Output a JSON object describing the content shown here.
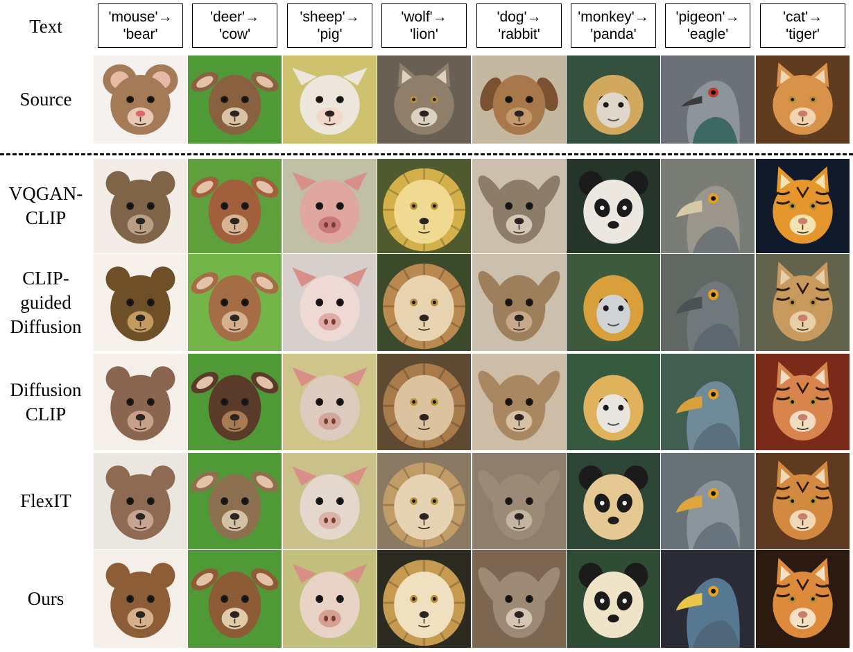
{
  "figure": {
    "header_label": "Text",
    "prompts": [
      {
        "source": "'mouse'→",
        "target": "'bear'"
      },
      {
        "source": "'deer'→",
        "target": "'cow'"
      },
      {
        "source": "'sheep'→",
        "target": "'pig'"
      },
      {
        "source": "'wolf'→",
        "target": "'lion'"
      },
      {
        "source": "'dog'→",
        "target": "'rabbit'"
      },
      {
        "source": "'monkey'→",
        "target": "'panda'"
      },
      {
        "source": "'pigeon'→",
        "target": "'eagle'"
      },
      {
        "source": "'cat'→",
        "target": "'tiger'"
      }
    ],
    "rows": [
      {
        "label": "Source",
        "kind": "source"
      },
      {
        "label": "VQGAN-\nCLIP",
        "kind": "method"
      },
      {
        "label": "CLIP-\nguided\nDiffusion",
        "kind": "method"
      },
      {
        "label": "Diffusion\nCLIP",
        "kind": "method"
      },
      {
        "label": "FlexIT",
        "kind": "method"
      },
      {
        "label": "Ours",
        "kind": "method"
      }
    ],
    "animal_images": [
      [
        {
          "icon": "mouse-face-icon",
          "bg": "#f4f1ee",
          "fur": "#a47a57",
          "muzzle": "#e8c9b3"
        },
        {
          "icon": "deer-face-icon",
          "bg": "#4f9a37",
          "fur": "#8a6140",
          "muzzle": "#d9c3a4"
        },
        {
          "icon": "sheep-face-icon",
          "bg": "#cfc26f",
          "fur": "#ece6dc",
          "muzzle": "#f2d8cc"
        },
        {
          "icon": "wolf-face-icon",
          "bg": "#6a5f55",
          "fur": "#8f7f6a",
          "muzzle": "#dcd2c2"
        },
        {
          "icon": "dog-face-icon",
          "bg": "#c5b8a2",
          "fur": "#a8784b",
          "muzzle": "#6a4c35"
        },
        {
          "icon": "monkey-face-icon",
          "bg": "#34513f",
          "fur": "#d1a85e",
          "muzzle": "#dfd7c9"
        },
        {
          "icon": "pigeon-face-icon",
          "bg": "#6b7177",
          "fur": "#8d949a",
          "muzzle": "#3c6a60"
        },
        {
          "icon": "cat-face-icon",
          "bg": "#5f3b1f",
          "fur": "#d8924a",
          "muzzle": "#f1d5b2"
        }
      ],
      [
        {
          "icon": "bear-face-icon",
          "bg": "#f3ece6",
          "fur": "#7f6448",
          "muzzle": "#b7a083"
        },
        {
          "icon": "cow-face-icon",
          "bg": "#5f9f3c",
          "fur": "#a15f3c",
          "muzzle": "#d7b494"
        },
        {
          "icon": "pig-face-icon",
          "bg": "#bfc0a6",
          "fur": "#e0a7a0",
          "muzzle": "#c97a76"
        },
        {
          "icon": "lion-face-icon",
          "bg": "#4f5b2e",
          "fur": "#d4b04a",
          "muzzle": "#f0da92"
        },
        {
          "icon": "rabbit-face-icon",
          "bg": "#cdbfae",
          "fur": "#8d7d68",
          "muzzle": "#d3c6b4"
        },
        {
          "icon": "panda-face-icon",
          "bg": "#253529",
          "fur": "#ece8e0",
          "muzzle": "#1b1b1b"
        },
        {
          "icon": "eagle-face-icon",
          "bg": "#7a7d76",
          "fur": "#9b968b",
          "muzzle": "#d6caa6"
        },
        {
          "icon": "tiger-face-icon",
          "bg": "#101a2b",
          "fur": "#e5972d",
          "muzzle": "#f3e3b0"
        }
      ],
      [
        {
          "icon": "bear-face-icon",
          "bg": "#f6f1ea",
          "fur": "#6e4f27",
          "muzzle": "#c39b5f"
        },
        {
          "icon": "cow-face-icon",
          "bg": "#73b548",
          "fur": "#a56d45",
          "muzzle": "#d5b08e"
        },
        {
          "icon": "pig-face-icon",
          "bg": "#d7cfcb",
          "fur": "#efd9d4",
          "muzzle": "#e0aba4"
        },
        {
          "icon": "lion-face-icon",
          "bg": "#3a4a2a",
          "fur": "#b9894f",
          "muzzle": "#e8d4b0"
        },
        {
          "icon": "rabbit-face-icon",
          "bg": "#cbbfae",
          "fur": "#9e7f5c",
          "muzzle": "#c7a88a"
        },
        {
          "icon": "monkey-face-icon",
          "bg": "#3d5b3c",
          "fur": "#d89f3b",
          "muzzle": "#cfd3d6"
        },
        {
          "icon": "eagle-face-icon",
          "bg": "#606864",
          "fur": "#71787c",
          "muzzle": "#4b5154"
        },
        {
          "icon": "tiger-face-icon",
          "bg": "#62634d",
          "fur": "#c99a5e",
          "muzzle": "#e7cfa7"
        }
      ],
      [
        {
          "icon": "bear-face-icon",
          "bg": "#f5efe9",
          "fur": "#8a6650",
          "muzzle": "#c89f88"
        },
        {
          "icon": "cow-face-icon",
          "bg": "#4f9a37",
          "fur": "#5a3b2a",
          "muzzle": "#a77a52"
        },
        {
          "icon": "pig-face-icon",
          "bg": "#cfc58a",
          "fur": "#ddcbbf",
          "muzzle": "#d4a59a"
        },
        {
          "icon": "lion-face-icon",
          "bg": "#5e4a33",
          "fur": "#a97b4a",
          "muzzle": "#dcc3a0"
        },
        {
          "icon": "rabbit-face-icon",
          "bg": "#cdbda6",
          "fur": "#a98761",
          "muzzle": "#d9c1a4"
        },
        {
          "icon": "monkey-face-icon",
          "bg": "#365a3f",
          "fur": "#e0b25c",
          "muzzle": "#e9e6df"
        },
        {
          "icon": "eagle-face-icon",
          "bg": "#405f52",
          "fur": "#6f8a99",
          "muzzle": "#d7a03a"
        },
        {
          "icon": "tiger-face-icon",
          "bg": "#7a2a18",
          "fur": "#d9844c",
          "muzzle": "#f2dcc2"
        }
      ],
      [
        {
          "icon": "bear-face-icon",
          "bg": "#eae6e0",
          "fur": "#8e6a52",
          "muzzle": "#c7a391"
        },
        {
          "icon": "deer-face-icon",
          "bg": "#4f9a37",
          "fur": "#8c7050",
          "muzzle": "#d4c0a2"
        },
        {
          "icon": "pig-face-icon",
          "bg": "#c9c08a",
          "fur": "#e4d8ce",
          "muzzle": "#dbb3a7"
        },
        {
          "icon": "lion-face-icon",
          "bg": "#8a7a63",
          "fur": "#c29c67",
          "muzzle": "#e5d3b4"
        },
        {
          "icon": "rabbit-face-icon",
          "bg": "#8d7f6c",
          "fur": "#9a8a76",
          "muzzle": "#c3b5a1"
        },
        {
          "icon": "panda-face-icon",
          "bg": "#2d4534",
          "fur": "#e6c992",
          "muzzle": "#1e1e1e"
        },
        {
          "icon": "eagle-face-icon",
          "bg": "#677277",
          "fur": "#8b959b",
          "muzzle": "#e0a63b"
        },
        {
          "icon": "tiger-face-icon",
          "bg": "#5d3a20",
          "fur": "#d38940",
          "muzzle": "#f1d8b6"
        }
      ],
      [
        {
          "icon": "bear-face-icon",
          "bg": "#f5efe9",
          "fur": "#8c5d37",
          "muzzle": "#d6b08b"
        },
        {
          "icon": "deer-face-icon",
          "bg": "#4f9a37",
          "fur": "#8d5c36",
          "muzzle": "#e0cba8"
        },
        {
          "icon": "pig-face-icon",
          "bg": "#c3c07e",
          "fur": "#e9d3c6",
          "muzzle": "#d79e92"
        },
        {
          "icon": "lion-face-icon",
          "bg": "#2b2b22",
          "fur": "#c79b4f",
          "muzzle": "#efe0c0"
        },
        {
          "icon": "rabbit-face-icon",
          "bg": "#7c6650",
          "fur": "#9d8a74",
          "muzzle": "#d4c6b2"
        },
        {
          "icon": "panda-face-icon",
          "bg": "#2f4d34",
          "fur": "#efe4c8",
          "muzzle": "#1a1a1a"
        },
        {
          "icon": "eagle-face-icon",
          "bg": "#2a2b34",
          "fur": "#577891",
          "muzzle": "#e9c54a"
        },
        {
          "icon": "tiger-face-icon",
          "bg": "#2a1a10",
          "fur": "#dd8a3c",
          "muzzle": "#f4e0c2"
        }
      ]
    ]
  }
}
